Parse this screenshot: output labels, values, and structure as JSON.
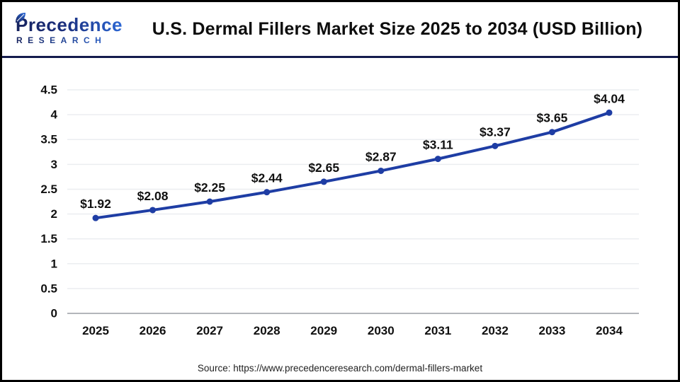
{
  "logo": {
    "name_top": "Precedence",
    "name_bottom": "RESEARCH",
    "navy": "#17235e",
    "blue": "#2e6cdb"
  },
  "header": {
    "title": "U.S. Dermal Fillers Market Size 2025 to 2034 (USD Billion)",
    "divider_color": "#141b4d"
  },
  "source": {
    "text": "Source: https://www.precedenceresearch.com/dermal-fillers-market"
  },
  "chart_data": {
    "type": "line",
    "title": "U.S. Dermal Fillers Market Size 2025 to 2034 (USD Billion)",
    "categories": [
      "2025",
      "2026",
      "2027",
      "2028",
      "2029",
      "2030",
      "2031",
      "2032",
      "2033",
      "2034"
    ],
    "values": [
      1.92,
      2.08,
      2.25,
      2.44,
      2.65,
      2.87,
      3.11,
      3.37,
      3.65,
      4.04
    ],
    "point_labels": [
      "$1.92",
      "$2.08",
      "$2.25",
      "$2.44",
      "$2.65",
      "$2.87",
      "$3.11",
      "$3.37",
      "$3.65",
      "$4.04"
    ],
    "xlabel": "",
    "ylabel": "",
    "ylim": [
      0,
      4.5
    ],
    "yticks": [
      "0",
      "0.5",
      "1",
      "1.5",
      "2",
      "2.5",
      "3",
      "3.5",
      "4",
      "4.5"
    ],
    "grid": true,
    "legend_position": "none",
    "line_color": "#1e3da4",
    "marker_color": "#1e3da4",
    "grid_color": "#ebedf0",
    "zero_axis_color": "#b3b6ba",
    "tick_label_color": "#111111",
    "point_label_color": "#111111"
  }
}
